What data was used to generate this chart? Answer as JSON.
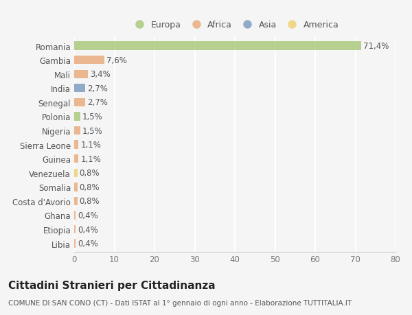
{
  "countries": [
    "Romania",
    "Gambia",
    "Mali",
    "India",
    "Senegal",
    "Polonia",
    "Nigeria",
    "Sierra Leone",
    "Guinea",
    "Venezuela",
    "Somalia",
    "Costa d'Avorio",
    "Ghana",
    "Etiopia",
    "Libia"
  ],
  "values": [
    71.4,
    7.6,
    3.4,
    2.7,
    2.7,
    1.5,
    1.5,
    1.1,
    1.1,
    0.8,
    0.8,
    0.8,
    0.4,
    0.4,
    0.4
  ],
  "labels": [
    "71,4%",
    "7,6%",
    "3,4%",
    "2,7%",
    "2,7%",
    "1,5%",
    "1,5%",
    "1,1%",
    "1,1%",
    "0,8%",
    "0,8%",
    "0,8%",
    "0,4%",
    "0,4%",
    "0,4%"
  ],
  "colors": [
    "#a8c87a",
    "#e8aa7a",
    "#e8aa7a",
    "#7a9abf",
    "#e8aa7a",
    "#a8c87a",
    "#e8aa7a",
    "#e8aa7a",
    "#e8aa7a",
    "#f0d070",
    "#e8aa7a",
    "#e8aa7a",
    "#e8aa7a",
    "#e8aa7a",
    "#e8aa7a"
  ],
  "legend_labels": [
    "Europa",
    "Africa",
    "Asia",
    "America"
  ],
  "legend_colors": [
    "#a8c87a",
    "#e8aa7a",
    "#7a9abf",
    "#f0d070"
  ],
  "title": "Cittadini Stranieri per Cittadinanza",
  "subtitle": "COMUNE DI SAN CONO (CT) - Dati ISTAT al 1° gennaio di ogni anno - Elaborazione TUTTITALIA.IT",
  "xlim": [
    0,
    80
  ],
  "xticks": [
    0,
    10,
    20,
    30,
    40,
    50,
    60,
    70,
    80
  ],
  "bg_color": "#f5f5f5",
  "bar_height": 0.6,
  "label_fontsize": 8.5,
  "tick_fontsize": 8.5,
  "title_fontsize": 11,
  "subtitle_fontsize": 7.5
}
